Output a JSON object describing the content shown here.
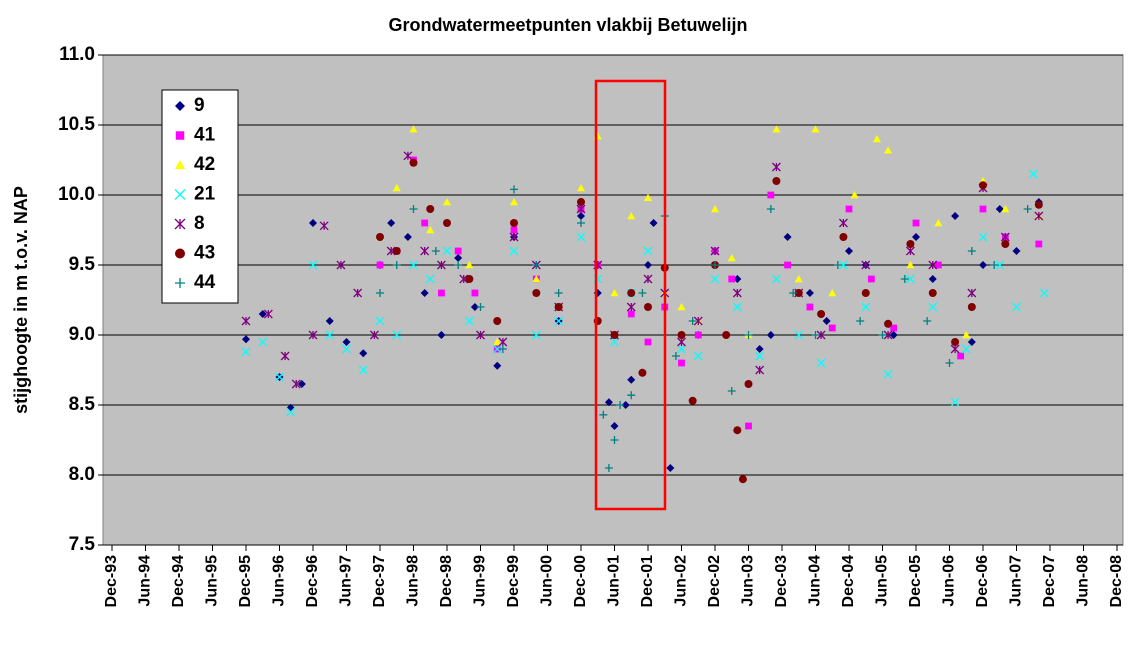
{
  "chart_data": {
    "type": "scatter",
    "title": "Grondwatermeetpunten vlakbij Betuwelijn",
    "ylabel": "stijghoogte in m t.o.v. NAP",
    "ylim": [
      7.5,
      11.0
    ],
    "yticks": [
      {
        "value": 7.5,
        "label": "7.5"
      },
      {
        "value": 8,
        "label": "8.0"
      },
      8.5,
      {
        "value": 9,
        "label": "9.0"
      },
      9.5,
      {
        "value": 10,
        "label": "10.0"
      },
      10.5,
      {
        "value": 11,
        "label": "11.0"
      }
    ],
    "xlim": [
      "1993-12",
      "2008-12"
    ],
    "xticks": [
      {
        "value": "1993-12",
        "label": "Dec-93"
      },
      {
        "value": "1994-06",
        "label": "Jun-94"
      },
      {
        "value": "1994-12",
        "label": "Dec-94"
      },
      {
        "value": "1995-06",
        "label": "Jun-95"
      },
      {
        "value": "1995-12",
        "label": "Dec-95"
      },
      {
        "value": "1996-06",
        "label": "Jun-96"
      },
      {
        "value": "1996-12",
        "label": "Dec-96"
      },
      {
        "value": "1997-06",
        "label": "Jun-97"
      },
      {
        "value": "1997-12",
        "label": "Dec-97"
      },
      {
        "value": "1998-06",
        "label": "Jun-98"
      },
      {
        "value": "1998-12",
        "label": "Dec-98"
      },
      {
        "value": "1999-06",
        "label": "Jun-99"
      },
      {
        "value": "1999-12",
        "label": "Dec-99"
      },
      {
        "value": "2000-06",
        "label": "Jun-00"
      },
      {
        "value": "2000-12",
        "label": "Dec-00"
      },
      {
        "value": "2001-06",
        "label": "Jun-01"
      },
      {
        "value": "2001-12",
        "label": "Dec-01"
      },
      {
        "value": "2002-06",
        "label": "Jun-02"
      },
      {
        "value": "2002-12",
        "label": "Dec-02"
      },
      {
        "value": "2003-06",
        "label": "Jun-03"
      },
      {
        "value": "2003-12",
        "label": "Dec-03"
      },
      {
        "value": "2004-06",
        "label": "Jun-04"
      },
      {
        "value": "2004-12",
        "label": "Dec-04"
      },
      {
        "value": "2005-06",
        "label": "Jun-05"
      },
      {
        "value": "2005-12",
        "label": "Dec-05"
      },
      {
        "value": "2006-06",
        "label": "Jun-06"
      },
      {
        "value": "2006-12",
        "label": "Dec-06"
      },
      {
        "value": "2007-06",
        "label": "Jun-07"
      },
      {
        "value": "2007-12",
        "label": "Dec-07"
      },
      {
        "value": "2008-06",
        "label": "Jun-08"
      },
      {
        "value": "2008-12",
        "label": "Dec-08"
      }
    ],
    "grid": true,
    "legend": "upper left",
    "series": [
      {
        "name": "9",
        "color": "#000080",
        "marker": "diamond",
        "x": [
          "1995-12",
          "1996-03",
          "1996-06",
          "1996-08",
          "1996-10",
          "1996-12",
          "1997-03",
          "1997-06",
          "1997-09",
          "1997-12",
          "1998-02",
          "1998-05",
          "1998-08",
          "1998-11",
          "1999-02",
          "1999-05",
          "1999-09",
          "1999-12",
          "2000-04",
          "2000-08",
          "2000-12",
          "2001-03",
          "2001-05",
          "2001-06",
          "2001-08",
          "2001-09",
          "2001-12",
          "2002-01",
          "2002-04",
          "2002-09",
          "2002-12",
          "2003-04",
          "2003-08",
          "2003-10",
          "2004-01",
          "2004-05",
          "2004-08",
          "2004-12",
          "2005-03",
          "2005-08",
          "2005-12",
          "2006-03",
          "2006-07",
          "2006-10",
          "2006-12",
          "2007-03",
          "2007-06",
          "2007-10"
        ],
        "values": [
          8.97,
          9.15,
          8.7,
          8.48,
          8.65,
          9.8,
          9.1,
          8.95,
          8.87,
          9.5,
          9.8,
          9.7,
          9.3,
          9.0,
          9.55,
          9.2,
          8.78,
          9.7,
          9.3,
          9.1,
          9.85,
          9.3,
          8.52,
          8.35,
          8.5,
          8.68,
          9.5,
          9.8,
          8.05,
          9.0,
          9.6,
          9.4,
          8.9,
          9.0,
          9.7,
          9.3,
          9.1,
          9.6,
          9.5,
          9.0,
          9.7,
          9.4,
          9.85,
          8.95,
          9.5,
          9.9,
          9.6,
          9.95
        ]
      },
      {
        "name": "41",
        "color": "#ff00ff",
        "marker": "square",
        "x": [
          "1997-12",
          "1998-03",
          "1998-06",
          "1998-08",
          "1998-11",
          "1999-02",
          "1999-05",
          "1999-09",
          "1999-12",
          "2000-04",
          "2000-08",
          "2000-12",
          "2001-03",
          "2001-06",
          "2001-09",
          "2001-12",
          "2002-03",
          "2002-06",
          "2002-09",
          "2002-12",
          "2003-03",
          "2003-06",
          "2003-10",
          "2004-01",
          "2004-05",
          "2004-09",
          "2004-12",
          "2005-04",
          "2005-08",
          "2005-12",
          "2006-04",
          "2006-08",
          "2006-12",
          "2007-04",
          "2007-10"
        ],
        "values": [
          9.5,
          9.6,
          10.25,
          9.8,
          9.3,
          9.6,
          9.3,
          8.9,
          9.75,
          9.4,
          9.2,
          9.9,
          9.5,
          9.0,
          9.15,
          8.95,
          9.2,
          8.8,
          9.0,
          9.6,
          9.4,
          8.35,
          10.0,
          9.5,
          9.2,
          9.05,
          9.9,
          9.4,
          9.05,
          9.8,
          9.5,
          8.85,
          9.9,
          9.7,
          9.65
        ]
      },
      {
        "name": "42",
        "color": "#ffff00",
        "marker": "triangle",
        "x": [
          "1997-12",
          "1998-03",
          "1998-06",
          "1998-09",
          "1998-12",
          "1999-04",
          "1999-09",
          "1999-12",
          "2000-04",
          "2000-08",
          "2000-12",
          "2001-03",
          "2001-06",
          "2001-09",
          "2001-12",
          "2002-03",
          "2002-06",
          "2002-09",
          "2002-12",
          "2003-03",
          "2003-06",
          "2003-11",
          "2004-03",
          "2004-06",
          "2004-09",
          "2005-01",
          "2005-05",
          "2005-07",
          "2005-11",
          "2006-04",
          "2006-09",
          "2006-12",
          "2007-04",
          "2007-10"
        ],
        "values": [
          9.7,
          10.05,
          10.47,
          9.75,
          9.95,
          9.5,
          8.95,
          9.95,
          9.4,
          9.2,
          10.05,
          10.42,
          9.3,
          9.85,
          9.98,
          9.3,
          9.2,
          9.1,
          9.9,
          9.55,
          9.0,
          10.47,
          9.4,
          10.47,
          9.3,
          10.0,
          10.4,
          10.32,
          9.5,
          9.8,
          9.0,
          10.1,
          9.9,
          9.85
        ]
      },
      {
        "name": "21",
        "color": "#00ffff",
        "marker": "x",
        "x": [
          "1995-12",
          "1996-03",
          "1996-06",
          "1996-08",
          "1996-12",
          "1997-03",
          "1997-06",
          "1997-09",
          "1997-12",
          "1998-03",
          "1998-06",
          "1998-09",
          "1998-12",
          "1999-04",
          "1999-09",
          "1999-12",
          "2000-04",
          "2000-08",
          "2000-12",
          "2001-03",
          "2001-06",
          "2001-09",
          "2001-12",
          "2002-03",
          "2002-06",
          "2002-09",
          "2002-12",
          "2003-04",
          "2003-08",
          "2003-11",
          "2004-03",
          "2004-07",
          "2004-11",
          "2005-03",
          "2005-07",
          "2005-11",
          "2006-03",
          "2006-07",
          "2006-09",
          "2006-12",
          "2007-03",
          "2007-06",
          "2007-09",
          "2007-11"
        ],
        "values": [
          8.88,
          8.95,
          8.7,
          8.45,
          9.5,
          9.0,
          8.9,
          8.75,
          9.1,
          9.0,
          9.5,
          9.4,
          9.6,
          9.1,
          8.9,
          9.6,
          9.0,
          9.1,
          9.7,
          9.4,
          8.95,
          9.3,
          9.6,
          9.3,
          8.9,
          8.85,
          9.4,
          9.2,
          8.85,
          9.4,
          9.0,
          8.8,
          9.5,
          9.2,
          8.72,
          9.4,
          9.2,
          8.52,
          8.9,
          9.7,
          9.5,
          9.2,
          10.15,
          9.3
        ]
      },
      {
        "name": "8",
        "color": "#800080",
        "marker": "star",
        "x": [
          "1995-12",
          "1996-04",
          "1996-07",
          "1996-09",
          "1996-12",
          "1997-02",
          "1997-05",
          "1997-08",
          "1997-11",
          "1998-02",
          "1998-05",
          "1998-08",
          "1998-11",
          "1999-03",
          "1999-06",
          "1999-10",
          "1999-12",
          "2000-04",
          "2000-08",
          "2000-12",
          "2001-03",
          "2001-06",
          "2001-09",
          "2001-12",
          "2002-03",
          "2002-06",
          "2002-09",
          "2002-12",
          "2003-04",
          "2003-08",
          "2003-11",
          "2004-03",
          "2004-07",
          "2004-11",
          "2005-03",
          "2005-07",
          "2005-11",
          "2006-03",
          "2006-07",
          "2006-10",
          "2006-12",
          "2007-04",
          "2007-10"
        ],
        "values": [
          9.1,
          9.15,
          8.85,
          8.65,
          9.0,
          9.78,
          9.5,
          9.3,
          9.0,
          9.6,
          10.28,
          9.6,
          9.5,
          9.4,
          9.0,
          8.95,
          9.7,
          9.5,
          9.2,
          9.9,
          9.5,
          9.0,
          9.2,
          9.4,
          9.3,
          8.95,
          9.1,
          9.6,
          9.3,
          8.75,
          10.2,
          9.3,
          9.0,
          9.8,
          9.5,
          9.0,
          9.6,
          9.5,
          8.9,
          9.3,
          10.05,
          9.7,
          9.85
        ]
      },
      {
        "name": "43",
        "color": "#800000",
        "marker": "circle",
        "x": [
          "1997-12",
          "1998-03",
          "1998-06",
          "1998-09",
          "1998-12",
          "1999-04",
          "1999-09",
          "1999-12",
          "2000-04",
          "2000-08",
          "2000-12",
          "2001-03",
          "2001-06",
          "2001-09",
          "2001-11",
          "2001-12",
          "2002-03",
          "2002-06",
          "2002-08",
          "2002-12",
          "2003-02",
          "2003-04",
          "2003-05",
          "2003-06",
          "2003-11",
          "2004-03",
          "2004-07",
          "2004-11",
          "2005-03",
          "2005-07",
          "2005-11",
          "2006-03",
          "2006-07",
          "2006-10",
          "2006-12",
          "2007-04",
          "2007-10"
        ],
        "values": [
          9.7,
          9.6,
          10.23,
          9.9,
          9.8,
          9.4,
          9.1,
          9.8,
          9.3,
          9.2,
          9.95,
          9.1,
          9.0,
          9.3,
          8.73,
          9.2,
          9.48,
          9.0,
          8.53,
          9.5,
          9.0,
          8.32,
          7.97,
          8.65,
          10.1,
          9.3,
          9.15,
          9.7,
          9.3,
          9.08,
          9.65,
          9.3,
          8.95,
          9.2,
          10.07,
          9.65,
          9.93
        ]
      },
      {
        "name": "44",
        "color": "#008080",
        "marker": "plus",
        "x": [
          "1997-12",
          "1998-03",
          "1998-06",
          "1998-10",
          "1999-02",
          "1999-06",
          "1999-10",
          "1999-12",
          "2000-04",
          "2000-08",
          "2000-12",
          "2001-04",
          "2001-05",
          "2001-06",
          "2001-07",
          "2001-09",
          "2001-11",
          "2002-03",
          "2002-05",
          "2002-08",
          "2002-12",
          "2003-03",
          "2003-06",
          "2003-10",
          "2004-02",
          "2004-06",
          "2004-10",
          "2005-02",
          "2005-06",
          "2005-10",
          "2006-02",
          "2006-06",
          "2006-10",
          "2007-02",
          "2007-08"
        ],
        "values": [
          9.3,
          9.5,
          9.9,
          9.6,
          9.5,
          9.2,
          8.9,
          10.04,
          9.5,
          9.3,
          9.8,
          8.43,
          8.05,
          8.25,
          8.5,
          8.57,
          9.3,
          9.85,
          8.85,
          9.1,
          9.5,
          8.6,
          9.0,
          9.9,
          9.3,
          9.0,
          9.5,
          9.1,
          9.0,
          9.4,
          9.1,
          8.8,
          9.6,
          9.5,
          9.9
        ]
      }
    ]
  }
}
